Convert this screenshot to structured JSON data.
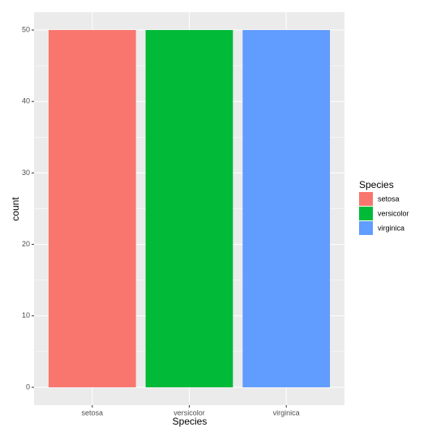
{
  "chart_data": {
    "type": "bar",
    "categories": [
      "setosa",
      "versicolor",
      "virginica"
    ],
    "series": [
      {
        "name": "setosa",
        "color": "#F8766D",
        "values": [
          50,
          null,
          null
        ]
      },
      {
        "name": "versicolor",
        "color": "#00BA38",
        "values": [
          null,
          50,
          null
        ]
      },
      {
        "name": "virginica",
        "color": "#619CFF",
        "values": [
          null,
          null,
          50
        ]
      }
    ],
    "x_label": "Species",
    "y_label": "count",
    "legend_title": "Species",
    "ylim": [
      -2.5,
      52.5
    ],
    "yticks": [
      0,
      10,
      20,
      30,
      40,
      50
    ],
    "grid": true,
    "legend": "right"
  }
}
